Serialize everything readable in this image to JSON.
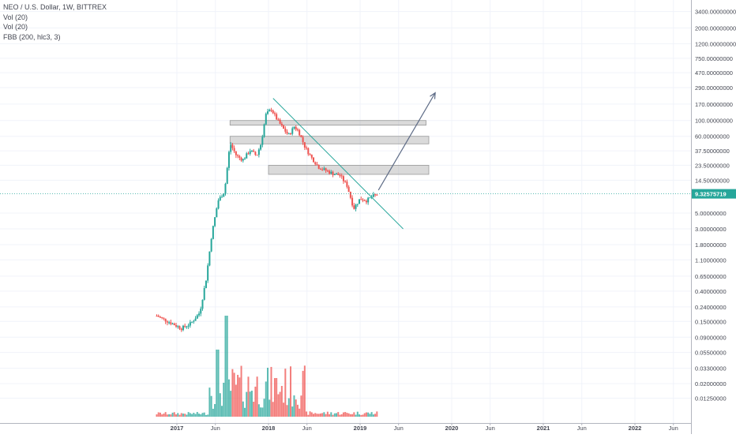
{
  "legend": {
    "symbol": "NEO / U.S. Dollar, 1W, BITTREX",
    "vol1": "Vol (20)",
    "vol2": "Vol (20)",
    "fbb": "FBB (200, hlc3, 3)"
  },
  "chart_data": {
    "type": "candlestick",
    "scale": "log",
    "last_price": "9.32575719",
    "y_ticks": [
      "3400.00000000",
      "2000.00000000",
      "1200.00000000",
      "750.00000000",
      "470.00000000",
      "290.00000000",
      "170.00000000",
      "100.00000000",
      "60.00000000",
      "37.50000000",
      "23.50000000",
      "14.50000000",
      "5.00000000",
      "3.00000000",
      "1.80000000",
      "1.10000000",
      "0.65000000",
      "0.40000000",
      "0.24000000",
      "0.15000000",
      "0.09000000",
      "0.05500000",
      "0.03300000",
      "0.02000000",
      "0.01250000"
    ],
    "x_ticks": [
      {
        "label": "2017",
        "t": 2017.0
      },
      {
        "label": "Jun",
        "t": 2017.42
      },
      {
        "label": "2018",
        "t": 2018.0
      },
      {
        "label": "Jun",
        "t": 2018.42
      },
      {
        "label": "2019",
        "t": 2019.0
      },
      {
        "label": "Jun",
        "t": 2019.42
      },
      {
        "label": "2020",
        "t": 2020.0
      },
      {
        "label": "Jun",
        "t": 2020.42
      },
      {
        "label": "2021",
        "t": 2021.0
      },
      {
        "label": "Jun",
        "t": 2021.42
      },
      {
        "label": "2022",
        "t": 2022.0
      },
      {
        "label": "Jun",
        "t": 2022.42
      }
    ],
    "price_anchors": [
      [
        2016.78,
        0.18
      ],
      [
        2016.95,
        0.14
      ],
      [
        2017.05,
        0.12
      ],
      [
        2017.15,
        0.14
      ],
      [
        2017.25,
        0.2
      ],
      [
        2017.32,
        0.6
      ],
      [
        2017.38,
        2.5
      ],
      [
        2017.45,
        7.5
      ],
      [
        2017.52,
        10
      ],
      [
        2017.58,
        48
      ],
      [
        2017.65,
        32
      ],
      [
        2017.72,
        28
      ],
      [
        2017.8,
        38
      ],
      [
        2017.87,
        32
      ],
      [
        2017.92,
        48
      ],
      [
        2017.97,
        120
      ],
      [
        2018.03,
        145
      ],
      [
        2018.08,
        110
      ],
      [
        2018.15,
        80
      ],
      [
        2018.22,
        62
      ],
      [
        2018.28,
        82
      ],
      [
        2018.33,
        70
      ],
      [
        2018.4,
        42
      ],
      [
        2018.47,
        30
      ],
      [
        2018.55,
        22
      ],
      [
        2018.62,
        20
      ],
      [
        2018.7,
        18
      ],
      [
        2018.78,
        17
      ],
      [
        2018.86,
        12
      ],
      [
        2018.93,
        5.8
      ],
      [
        2019.0,
        8
      ],
      [
        2019.07,
        7.5
      ],
      [
        2019.13,
        8.5
      ],
      [
        2019.2,
        9.33
      ]
    ],
    "zones": [
      {
        "t0": 2018.0,
        "t1": 2019.75,
        "low": 17.5,
        "high": 23.5
      },
      {
        "t0": 2017.58,
        "t1": 2019.75,
        "low": 47,
        "high": 60
      },
      {
        "t0": 2017.58,
        "t1": 2019.72,
        "low": 86,
        "high": 100
      }
    ],
    "trendline": {
      "p1": [
        2018.05,
        205
      ],
      "p2": [
        2019.47,
        3.0
      ]
    },
    "arrow": {
      "p1": [
        2019.2,
        10.5
      ],
      "p2": [
        2019.82,
        245
      ]
    }
  }
}
